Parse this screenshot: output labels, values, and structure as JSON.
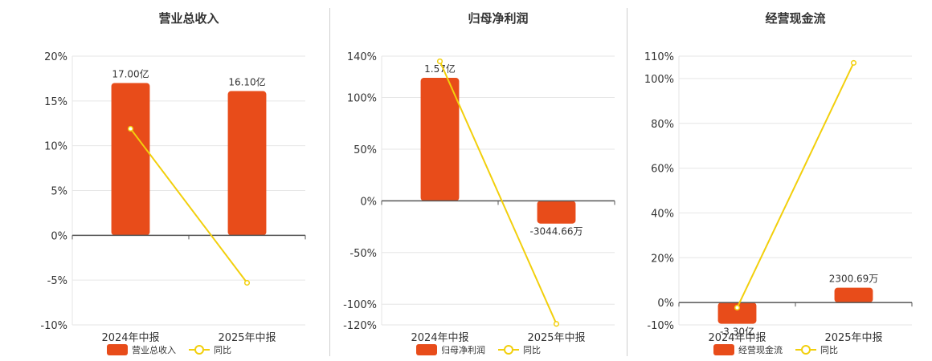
{
  "colors": {
    "bar": "#E84C1A",
    "line": "#F2CF0C",
    "grid": "#e6e6e6",
    "axis": "#555555"
  },
  "chart_data": [
    {
      "type": "bar",
      "title": "营业总收入",
      "categories": [
        "2024年中报",
        "2025年中报"
      ],
      "ylim": [
        -10,
        20
      ],
      "yticks": [
        "20%",
        "15%",
        "10%",
        "5%",
        "0%",
        "-5%",
        "-10%"
      ],
      "ytick_values": [
        20,
        15,
        10,
        5,
        0,
        -5,
        -10
      ],
      "series": [
        {
          "name": "营业总收入",
          "kind": "bar",
          "values": [
            17.0,
            16.1
          ],
          "scaled_values": [
            17.0,
            16.1
          ],
          "labels": [
            "17.00亿",
            "16.10亿"
          ]
        },
        {
          "name": "同比",
          "kind": "line",
          "values": [
            11.9,
            -5.3
          ]
        }
      ],
      "legend": "bottom-center",
      "grid": true
    },
    {
      "type": "bar",
      "title": "归母净利润",
      "categories": [
        "2024年中报",
        "2025年中报"
      ],
      "ylim": [
        -120,
        140
      ],
      "yticks": [
        "140%",
        "100%",
        "50%",
        "0%",
        "-50%",
        "-100%",
        "-120%"
      ],
      "ytick_values": [
        140,
        100,
        50,
        0,
        -50,
        -100,
        -120
      ],
      "series": [
        {
          "name": "归母净利润",
          "kind": "bar",
          "values": [
            1.57,
            -0.304466
          ],
          "scaled_values": [
            119,
            -22
          ],
          "labels": [
            "1.57亿",
            "-3044.66万"
          ]
        },
        {
          "name": "同比",
          "kind": "line",
          "values": [
            135,
            -119
          ]
        }
      ],
      "legend": "bottom-center",
      "grid": true
    },
    {
      "type": "bar",
      "title": "经营现金流",
      "categories": [
        "2024年中报",
        "2025年中报"
      ],
      "ylim": [
        -10,
        110
      ],
      "yticks": [
        "110%",
        "100%",
        "80%",
        "60%",
        "40%",
        "20%",
        "0%",
        "-10%"
      ],
      "ytick_values": [
        110,
        100,
        80,
        60,
        40,
        20,
        0,
        -10
      ],
      "series": [
        {
          "name": "经营现金流",
          "kind": "bar",
          "values": [
            -3.3,
            0.230069
          ],
          "scaled_values": [
            -9.5,
            6.6
          ],
          "labels": [
            "-3.30亿",
            "2300.69万"
          ]
        },
        {
          "name": "同比",
          "kind": "line",
          "values": [
            -2.3,
            107
          ]
        }
      ],
      "legend": "bottom-center",
      "grid": true
    }
  ]
}
